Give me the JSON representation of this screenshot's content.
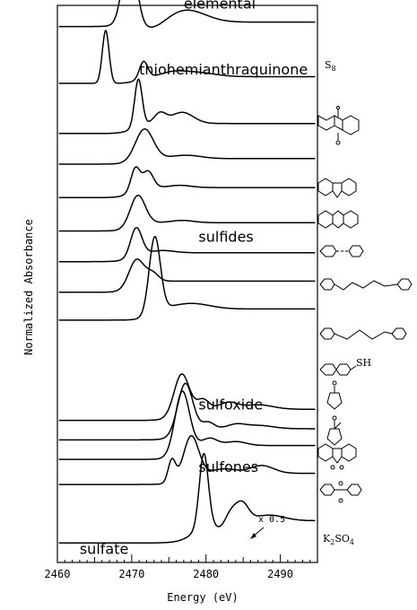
{
  "chart_data": {
    "type": "line",
    "title": "",
    "xlabel": "Energy (eV)",
    "ylabel": "Normalized Absorbance",
    "xlim": [
      2460,
      2495
    ],
    "x_ticks": [
      "2460",
      "2470",
      "2480",
      "2490"
    ],
    "x_tick_values": [
      2460,
      2470,
      2480,
      2490
    ],
    "grid": false,
    "group_labels": [
      {
        "text": "elemental",
        "x": 2477,
        "series_index": 0
      },
      {
        "text": "thiohemianthraquinone",
        "x": 2471,
        "series_index": 1
      },
      {
        "text": "sulfides",
        "x": 2479,
        "series_index": 6
      },
      {
        "text": "sulfoxide",
        "x": 2479,
        "series_index": 9
      },
      {
        "text": "sulfones",
        "x": 2479,
        "series_index": 12
      },
      {
        "text": "sulfate",
        "x": 2463,
        "series_index": 13
      }
    ],
    "annotation": {
      "text": "x 0.5",
      "x": 2485,
      "series_index": 13
    },
    "series": [
      {
        "baseline": 0.962,
        "peaks": [
          {
            "e": 2469.7,
            "h": 0.135,
            "w": 0.9
          },
          {
            "e": 2477.3,
            "h": 0.022,
            "w": 2.6
          }
        ],
        "edge": {
          "e": 2468.5,
          "h": 0.008,
          "w": 0.8
        },
        "dip": {
          "e": 2472.8,
          "h": -0.014,
          "w": 1.8
        }
      },
      {
        "baseline": 0.86,
        "peaks": [
          {
            "e": 2466.5,
            "h": 0.095,
            "w": 0.45
          },
          {
            "e": 2471.6,
            "h": 0.03,
            "w": 0.55
          },
          {
            "e": 2475.5,
            "h": 0.006,
            "w": 1.5
          },
          {
            "e": 2478.5,
            "h": 0.008,
            "w": 2.5
          }
        ],
        "edge": {
          "e": 2470.8,
          "h": 0.012,
          "w": 0.7
        }
      },
      {
        "baseline": 0.77,
        "peaks": [
          {
            "e": 2470.9,
            "h": 0.085,
            "w": 0.5
          },
          {
            "e": 2473.8,
            "h": 0.018,
            "w": 0.8
          },
          {
            "e": 2476.8,
            "h": 0.02,
            "w": 1.5
          }
        ],
        "edge": {
          "e": 2470.2,
          "h": 0.018,
          "w": 0.8
        }
      },
      {
        "baseline": 0.715,
        "peaks": [
          {
            "e": 2471.7,
            "h": 0.055,
            "w": 1.2
          },
          {
            "e": 2477.3,
            "h": 0.006,
            "w": 2.0
          }
        ],
        "edge": {
          "e": 2470.5,
          "h": 0.01,
          "w": 0.9
        }
      },
      {
        "baseline": 0.655,
        "peaks": [
          {
            "e": 2470.5,
            "h": 0.04,
            "w": 0.6
          },
          {
            "e": 2472.2,
            "h": 0.03,
            "w": 0.7
          },
          {
            "e": 2476.5,
            "h": 0.004,
            "w": 1.5
          }
        ],
        "edge": {
          "e": 2469.8,
          "h": 0.018,
          "w": 0.7
        }
      },
      {
        "baseline": 0.595,
        "peaks": [
          {
            "e": 2470.8,
            "h": 0.053,
            "w": 1.0
          },
          {
            "e": 2476.8,
            "h": 0.004,
            "w": 1.5
          }
        ],
        "edge": {
          "e": 2470.0,
          "h": 0.015,
          "w": 0.8
        }
      },
      {
        "baseline": 0.54,
        "peaks": [
          {
            "e": 2470.6,
            "h": 0.05,
            "w": 0.75
          },
          {
            "e": 2474.2,
            "h": 0.004,
            "w": 1.5
          }
        ],
        "edge": {
          "e": 2470.0,
          "h": 0.016,
          "w": 0.8
        }
      },
      {
        "baseline": 0.485,
        "peaks": [
          {
            "e": 2470.6,
            "h": 0.045,
            "w": 1.0
          },
          {
            "e": 2472.8,
            "h": 0.015,
            "w": 0.8
          }
        ],
        "edge": {
          "e": 2470.0,
          "h": 0.02,
          "w": 0.8
        }
      },
      {
        "baseline": 0.435,
        "peaks": [
          {
            "e": 2473.1,
            "h": 0.135,
            "w": 0.75
          },
          {
            "e": 2478.0,
            "h": 0.01,
            "w": 2.5
          }
        ],
        "edge": {
          "e": 2472.5,
          "h": 0.02,
          "w": 0.8
        }
      },
      {
        "baseline": 0.255,
        "peaks": [
          {
            "e": 2476.7,
            "h": 0.068,
            "w": 1.0
          },
          {
            "e": 2479.6,
            "h": 0.018,
            "w": 0.8
          },
          {
            "e": 2483.0,
            "h": 0.012,
            "w": 1.2
          },
          {
            "e": 2487.0,
            "h": 0.008,
            "w": 2.0
          }
        ],
        "edge": {
          "e": 2475.8,
          "h": 0.02,
          "w": 0.8
        }
      },
      {
        "baseline": 0.22,
        "peaks": [
          {
            "e": 2477.2,
            "h": 0.085,
            "w": 1.0
          },
          {
            "e": 2480.3,
            "h": 0.012,
            "w": 0.8
          },
          {
            "e": 2484.0,
            "h": 0.007,
            "w": 1.2
          },
          {
            "e": 2487.0,
            "h": 0.006,
            "w": 2.0
          }
        ],
        "edge": {
          "e": 2476.0,
          "h": 0.02,
          "w": 0.8
        }
      },
      {
        "baseline": 0.185,
        "peaks": [
          {
            "e": 2476.8,
            "h": 0.1,
            "w": 0.95
          },
          {
            "e": 2480.5,
            "h": 0.013,
            "w": 1.0
          },
          {
            "e": 2484.0,
            "h": 0.007,
            "w": 1.4
          }
        ],
        "edge": {
          "e": 2475.5,
          "h": 0.025,
          "w": 0.6
        }
      },
      {
        "baseline": 0.14,
        "peaks": [
          {
            "e": 2475.4,
            "h": 0.04,
            "w": 0.5
          },
          {
            "e": 2478.0,
            "h": 0.07,
            "w": 1.0
          },
          {
            "e": 2482.5,
            "h": 0.008,
            "w": 1.5
          },
          {
            "e": 2487.5,
            "h": 0.014,
            "w": 1.6
          }
        ],
        "edge": {
          "e": 2476.5,
          "h": 0.02,
          "w": 0.8
        }
      },
      {
        "baseline": 0.035,
        "peaks": [
          {
            "e": 2479.7,
            "h": 0.13,
            "w": 0.6
          },
          {
            "e": 2483.5,
            "h": 0.022,
            "w": 1.0
          },
          {
            "e": 2485.0,
            "h": 0.025,
            "w": 0.8
          },
          {
            "e": 2488.5,
            "h": 0.01,
            "w": 2.0
          }
        ],
        "edge": {
          "e": 2478.5,
          "h": 0.04,
          "w": 1.0
        },
        "dip": {
          "e": 2482.0,
          "h": -0.015,
          "w": 0.8
        }
      }
    ],
    "compound_labels": [
      {
        "text": "S",
        "sub": "8",
        "series_index": 0
      },
      {
        "text": "K",
        "sub": "2",
        "text2": "SO",
        "sub2": "4",
        "series_index": 13
      }
    ]
  }
}
